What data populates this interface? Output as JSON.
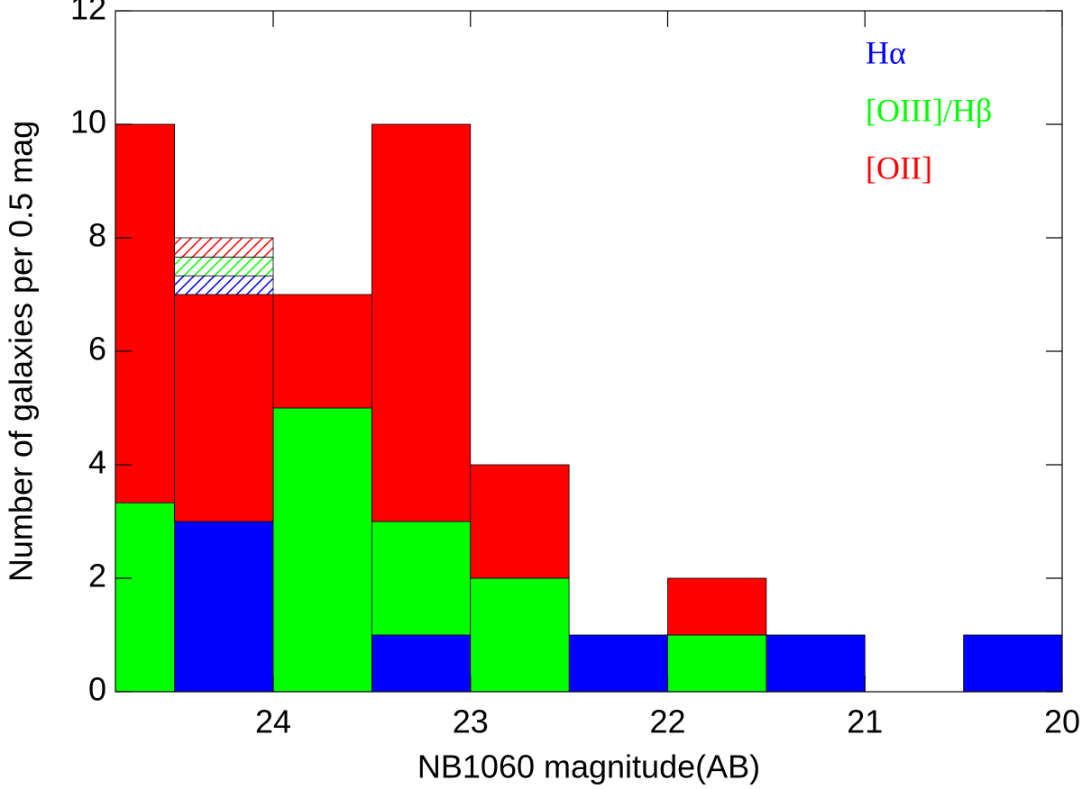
{
  "chart_data": {
    "type": "histogram",
    "stacked": true,
    "xlabel": "NB1060 magnitude(AB)",
    "ylabel": "Number of galaxies per 0.5 mag",
    "bins": [
      24.8,
      24.5,
      24,
      23.5,
      23,
      22.5,
      22,
      21.5,
      21,
      20.5,
      20
    ],
    "series": [
      {
        "name": "Hα",
        "color": "#0000ff",
        "values": [
          0,
          3,
          0,
          1,
          0,
          1,
          0,
          1,
          0,
          1
        ]
      },
      {
        "name": "[OIII]/Hβ",
        "color": "#00ff00",
        "values": [
          3.33,
          0,
          5,
          2,
          2,
          0,
          1,
          0,
          0,
          0
        ]
      },
      {
        "name": "[OII]",
        "color": "#ff0000",
        "values": [
          6.67,
          4,
          2,
          7,
          2,
          0,
          1,
          0,
          0,
          0
        ]
      },
      {
        "color": "#0000ff",
        "hatched": true,
        "values": [
          0,
          0.33,
          0,
          0,
          0,
          0,
          0,
          0,
          0,
          0
        ]
      },
      {
        "color": "#00ff00",
        "hatched": true,
        "values": [
          0,
          0.33,
          0,
          0,
          0,
          0,
          0,
          0,
          0,
          0
        ]
      },
      {
        "color": "#ff0000",
        "hatched": true,
        "values": [
          0,
          0.34,
          0,
          0,
          0,
          0,
          0,
          0,
          0,
          0
        ]
      }
    ],
    "xlim": [
      24.8,
      20
    ],
    "xticks": [
      24,
      23,
      22,
      21,
      20
    ],
    "ylim": [
      0,
      12
    ],
    "yticks": [
      0,
      2,
      4,
      6,
      8,
      10,
      12
    ]
  }
}
